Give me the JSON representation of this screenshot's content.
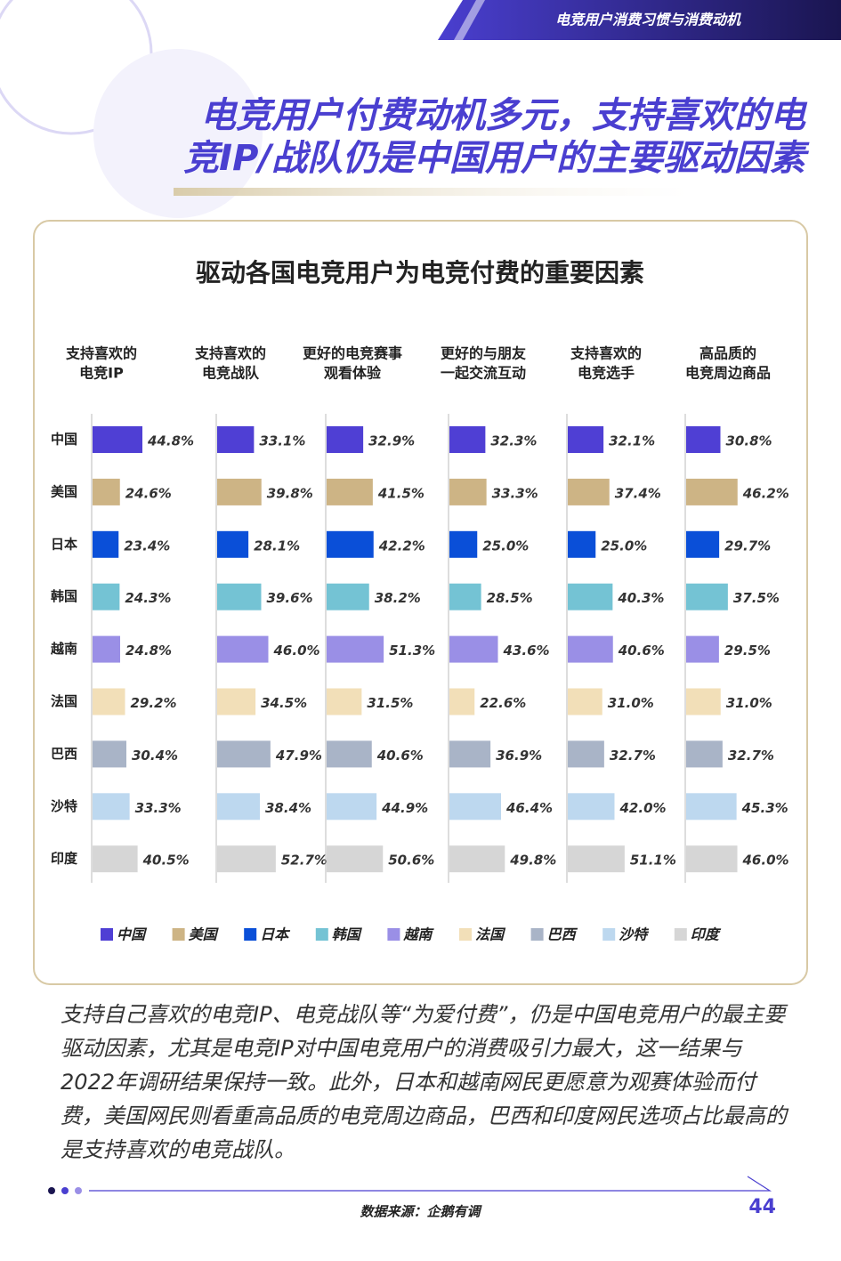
{
  "header": {
    "section": "电竞用户消费习惯与消费动机",
    "title": [
      "电竞用户付费动机多元，支持喜欢的电",
      "竞IP/战队仍是中国用户的主要驱动因素"
    ]
  },
  "chart_data": {
    "type": "bar",
    "title": "驱动各国电竞用户为电竞付费的重要因素",
    "categories": [
      "中国",
      "美国",
      "日本",
      "韩国",
      "越南",
      "法国",
      "巴西",
      "沙特",
      "印度"
    ],
    "colors": [
      "#4f3fd4",
      "#cdb485",
      "#0a4fd8",
      "#74c3d4",
      "#9a8fe6",
      "#f2dfb8",
      "#a9b4c7",
      "#bdd8ef",
      "#d6d6d6"
    ],
    "panels": [
      {
        "title": [
          "支持喜欢的",
          "电竞IP"
        ],
        "values": [
          44.8,
          24.6,
          23.4,
          24.3,
          24.8,
          29.2,
          30.4,
          33.3,
          40.5
        ],
        "value_labels": [
          "44.8%",
          "24.6%",
          "23.4%",
          "24.3%",
          "24.8%",
          "29.2%",
          "30.4%",
          "33.3%",
          "40.5%"
        ]
      },
      {
        "title": [
          "支持喜欢的",
          "电竞战队"
        ],
        "values": [
          33.1,
          39.8,
          28.1,
          39.6,
          46.0,
          34.5,
          47.9,
          38.4,
          52.7
        ],
        "value_labels": [
          "33.1%",
          "39.8%",
          "28.1%",
          "39.6%",
          "46.0%",
          "34.5%",
          "47.9%",
          "38.4%",
          "52.7%"
        ]
      },
      {
        "title": [
          "更好的电竞赛事",
          "观看体验"
        ],
        "values": [
          32.9,
          41.5,
          42.2,
          38.2,
          51.3,
          31.5,
          40.6,
          44.9,
          50.6
        ],
        "value_labels": [
          "32.9%",
          "41.5%",
          "42.2%",
          "38.2%",
          "51.3%",
          "31.5%",
          "40.6%",
          "44.9%",
          "50.6%"
        ]
      },
      {
        "title": [
          "更好的与朋友",
          "一起交流互动"
        ],
        "values": [
          32.3,
          33.3,
          25.0,
          28.5,
          43.6,
          22.6,
          36.9,
          46.4,
          49.8
        ],
        "value_labels": [
          "32.3%",
          "33.3%",
          "25.0%",
          "28.5%",
          "43.6%",
          "22.6%",
          "36.9%",
          "46.4%",
          "49.8%"
        ]
      },
      {
        "title": [
          "支持喜欢的",
          "电竞选手"
        ],
        "values": [
          32.1,
          37.4,
          25.0,
          40.3,
          40.6,
          31.0,
          32.7,
          42.0,
          51.1
        ],
        "value_labels": [
          "32.1%",
          "37.4%",
          "25.0%",
          "40.3%",
          "40.6%",
          "31.0%",
          "32.7%",
          "42.0%",
          "51.1%"
        ]
      },
      {
        "title": [
          "高品质的",
          "电竞周边商品"
        ],
        "values": [
          30.8,
          46.2,
          29.7,
          37.5,
          29.5,
          31.0,
          32.7,
          45.3,
          46.0
        ],
        "value_labels": [
          "30.8%",
          "46.2%",
          "29.7%",
          "37.5%",
          "29.5%",
          "31.0%",
          "32.7%",
          "45.3%",
          "46.0%"
        ]
      }
    ]
  },
  "body": "支持自己喜欢的电竞IP、电竞战队等“为爱付费”，仍是中国电竞用户的最主要驱动因素，尤其是电竞IP对中国电竞用户的消费吸引力最大，这一结果与2022年调研结果保持一致。此外，日本和越南网民更愿意为观赛体验而付费，美国网民则看重高品质的电竞周边商品，巴西和印度网民选项占比最高的是支持喜欢的电竞战队。",
  "footer": {
    "source": "数据来源：企鹅有调",
    "page": "44"
  }
}
